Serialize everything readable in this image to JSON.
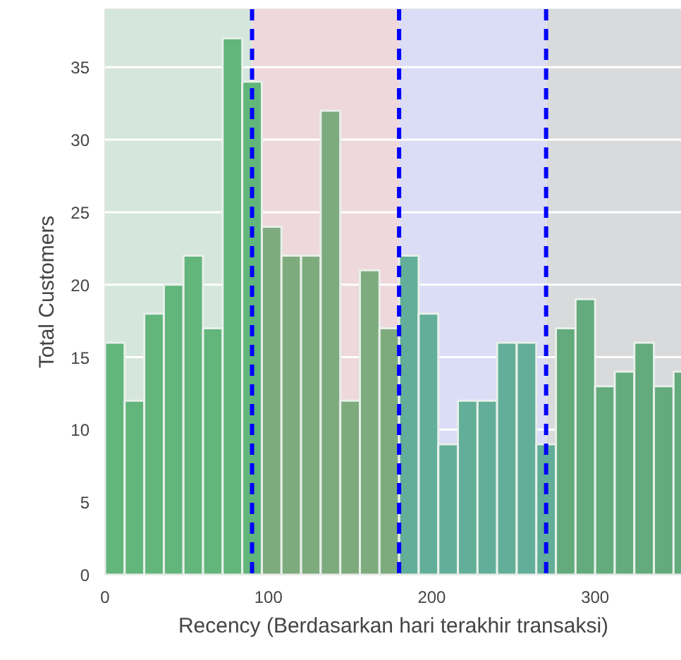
{
  "chart_data": {
    "type": "histogram",
    "xlabel": "Recency (Berdasarkan hari terakhir transaksi)",
    "ylabel": "Total Customers",
    "bins": [
      0,
      12,
      24,
      36,
      48,
      60,
      72,
      84,
      96,
      108,
      120,
      132,
      144,
      156,
      168,
      180,
      192,
      204,
      216,
      228,
      240,
      252,
      264,
      276,
      288,
      300,
      312,
      324,
      336,
      348,
      360
    ],
    "values": [
      16,
      12,
      18,
      20,
      22,
      17,
      37,
      34,
      24,
      22,
      22,
      32,
      12,
      21,
      17,
      22,
      18,
      9,
      12,
      12,
      16,
      16,
      9,
      17,
      19,
      13,
      14,
      16,
      13,
      14
    ],
    "colors": [
      "#62b57b",
      "#62b57b",
      "#62b57b",
      "#62b57b",
      "#62b57b",
      "#62b57b",
      "#62b57b",
      "#62b57b",
      "#7eab7d",
      "#7eab7d",
      "#7eab7d",
      "#7eab7d",
      "#7eab7d",
      "#7eab7d",
      "#7eab7d",
      "#63ae98",
      "#63ae98",
      "#63ae98",
      "#63ae98",
      "#63ae98",
      "#63ae98",
      "#63ae98",
      "#63ae98",
      "#63aa7c",
      "#63aa7c",
      "#63aa7c",
      "#63aa7c",
      "#63aa7c",
      "#63aa7c",
      "#63aa7c"
    ],
    "xlim": [
      0,
      353
    ],
    "ylim": [
      0,
      39
    ],
    "xticks": [
      0,
      100,
      200,
      300
    ],
    "yticks": [
      0,
      5,
      10,
      15,
      20,
      25,
      30,
      35
    ],
    "grid": "y",
    "bands": [
      {
        "axis": "x",
        "from": 0,
        "to": 90,
        "color": "#d5e6dc"
      },
      {
        "axis": "x",
        "from": 90,
        "to": 180,
        "color": "#eed8dc"
      },
      {
        "axis": "x",
        "from": 180,
        "to": 270,
        "color": "#dbdcf5"
      },
      {
        "axis": "x",
        "from": 270,
        "to": 353,
        "color": "#d9dadc"
      }
    ],
    "ref_lines": [
      {
        "axis": "x",
        "value": 90,
        "color": "#0000ff",
        "line_style": "dashed"
      },
      {
        "axis": "x",
        "value": 180,
        "color": "#0000ff",
        "line_style": "dashed"
      },
      {
        "axis": "x",
        "value": 270,
        "color": "#0000ff",
        "line_style": "dashed"
      }
    ]
  }
}
